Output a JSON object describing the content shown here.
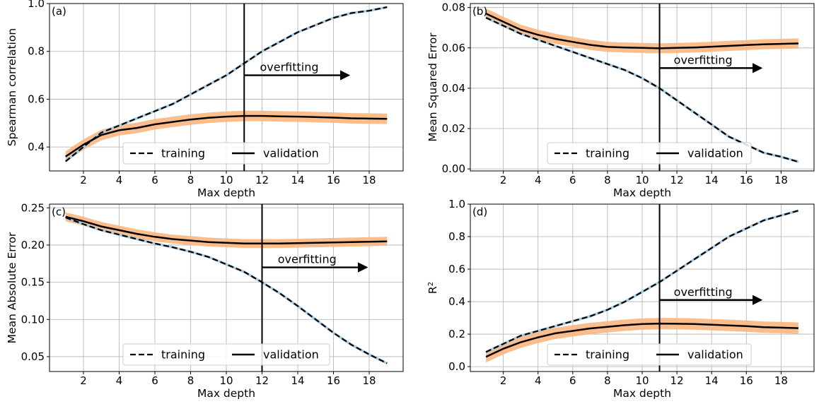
{
  "chart_data": [
    {
      "type": "line",
      "panel_label": "(a)",
      "xlabel": "Max depth",
      "ylabel": "Spearman correlation",
      "xlim": [
        0.1,
        19.9
      ],
      "ylim": [
        0.3,
        1.0
      ],
      "xticks": [
        2,
        4,
        6,
        8,
        10,
        12,
        14,
        16,
        18
      ],
      "yticks": [
        0.4,
        0.6,
        0.8,
        1.0
      ],
      "ytick_labels": [
        "0.4",
        "0.6",
        "0.8",
        "1.0"
      ],
      "grid": true,
      "legend_placement": "lower center",
      "x": [
        1,
        2,
        3,
        4,
        5,
        6,
        7,
        8,
        9,
        10,
        11,
        12,
        13,
        14,
        15,
        16,
        17,
        18,
        19
      ],
      "series": [
        {
          "name": "training",
          "style": "dashed",
          "values": [
            0.34,
            0.4,
            0.46,
            0.49,
            0.52,
            0.55,
            0.58,
            0.62,
            0.66,
            0.7,
            0.75,
            0.8,
            0.84,
            0.88,
            0.91,
            0.94,
            0.96,
            0.97,
            0.985
          ]
        },
        {
          "name": "validation",
          "style": "solid",
          "values": [
            0.36,
            0.41,
            0.45,
            0.47,
            0.48,
            0.495,
            0.505,
            0.515,
            0.522,
            0.527,
            0.53,
            0.53,
            0.528,
            0.527,
            0.525,
            0.523,
            0.52,
            0.519,
            0.518
          ],
          "band": 0.022
        }
      ],
      "vline_x": 11,
      "annotation": {
        "text": "overfitting",
        "x_start": 11,
        "x_end": 17,
        "y": 0.7
      }
    },
    {
      "type": "line",
      "panel_label": "(b)",
      "xlabel": "Max depth",
      "ylabel": "Mean Squared Error",
      "xlim": [
        0.1,
        19.9
      ],
      "ylim": [
        -0.001,
        0.082
      ],
      "xticks": [
        2,
        4,
        6,
        8,
        10,
        12,
        14,
        16,
        18
      ],
      "yticks": [
        0.0,
        0.02,
        0.04,
        0.06,
        0.08
      ],
      "ytick_labels": [
        "0.00",
        "0.02",
        "0.04",
        "0.06",
        "0.08"
      ],
      "grid": true,
      "legend_placement": "lower center",
      "x": [
        1,
        2,
        3,
        4,
        5,
        6,
        7,
        8,
        9,
        10,
        11,
        12,
        13,
        14,
        15,
        16,
        17,
        18,
        19
      ],
      "series": [
        {
          "name": "training",
          "style": "dashed",
          "values": [
            0.075,
            0.071,
            0.067,
            0.064,
            0.061,
            0.058,
            0.055,
            0.052,
            0.049,
            0.045,
            0.04,
            0.034,
            0.028,
            0.022,
            0.016,
            0.012,
            0.008,
            0.006,
            0.0035
          ]
        },
        {
          "name": "validation",
          "style": "solid",
          "values": [
            0.077,
            0.073,
            0.069,
            0.0665,
            0.0645,
            0.063,
            0.0615,
            0.0605,
            0.0602,
            0.06,
            0.0598,
            0.06,
            0.0602,
            0.0606,
            0.061,
            0.0614,
            0.0618,
            0.062,
            0.0622
          ],
          "band": 0.0025
        }
      ],
      "vline_x": 11,
      "annotation": {
        "text": "overfitting",
        "x_start": 11,
        "x_end": 17,
        "y": 0.05
      }
    },
    {
      "type": "line",
      "panel_label": "(c)",
      "xlabel": "Max depth",
      "ylabel": "Mean Absolute Error",
      "xlim": [
        0.1,
        19.9
      ],
      "ylim": [
        0.03,
        0.255
      ],
      "xticks": [
        2,
        4,
        6,
        8,
        10,
        12,
        14,
        16,
        18
      ],
      "yticks": [
        0.05,
        0.1,
        0.15,
        0.2,
        0.25
      ],
      "ytick_labels": [
        "0.05",
        "0.10",
        "0.15",
        "0.20",
        "0.25"
      ],
      "grid": true,
      "legend_placement": "lower center",
      "x": [
        1,
        2,
        3,
        4,
        5,
        6,
        7,
        8,
        9,
        10,
        11,
        12,
        13,
        14,
        15,
        16,
        17,
        18,
        19
      ],
      "series": [
        {
          "name": "training",
          "style": "dashed",
          "values": [
            0.237,
            0.228,
            0.22,
            0.214,
            0.208,
            0.202,
            0.197,
            0.191,
            0.184,
            0.174,
            0.164,
            0.15,
            0.135,
            0.118,
            0.1,
            0.082,
            0.066,
            0.053,
            0.041
          ]
        },
        {
          "name": "validation",
          "style": "solid",
          "values": [
            0.238,
            0.232,
            0.225,
            0.22,
            0.215,
            0.211,
            0.208,
            0.206,
            0.204,
            0.203,
            0.202,
            0.202,
            0.202,
            0.2025,
            0.203,
            0.2035,
            0.204,
            0.2045,
            0.205
          ],
          "band": 0.006
        }
      ],
      "vline_x": 12,
      "annotation": {
        "text": "overfitting",
        "x_start": 12,
        "x_end": 18,
        "y": 0.17
      }
    },
    {
      "type": "line",
      "panel_label": "(d)",
      "xlabel": "Max depth",
      "ylabel": "R",
      "ylabel_superscript": "2",
      "xlim": [
        0.1,
        19.9
      ],
      "ylim": [
        -0.03,
        1.0
      ],
      "xticks": [
        2,
        4,
        6,
        8,
        10,
        12,
        14,
        16,
        18
      ],
      "yticks": [
        0.0,
        0.2,
        0.4,
        0.6,
        0.8,
        1.0
      ],
      "ytick_labels": [
        "0.0",
        "0.2",
        "0.4",
        "0.6",
        "0.8",
        "1.0"
      ],
      "grid": true,
      "legend_placement": "lower center",
      "x": [
        1,
        2,
        3,
        4,
        5,
        6,
        7,
        8,
        9,
        10,
        11,
        12,
        13,
        14,
        15,
        16,
        17,
        18,
        19
      ],
      "series": [
        {
          "name": "training",
          "style": "dashed",
          "values": [
            0.09,
            0.14,
            0.19,
            0.22,
            0.25,
            0.28,
            0.31,
            0.35,
            0.4,
            0.46,
            0.52,
            0.59,
            0.66,
            0.73,
            0.8,
            0.85,
            0.9,
            0.93,
            0.96
          ]
        },
        {
          "name": "validation",
          "style": "solid",
          "values": [
            0.06,
            0.11,
            0.15,
            0.18,
            0.205,
            0.22,
            0.235,
            0.245,
            0.255,
            0.262,
            0.265,
            0.264,
            0.262,
            0.258,
            0.254,
            0.249,
            0.243,
            0.24,
            0.237
          ],
          "band": 0.035
        }
      ],
      "vline_x": 11,
      "annotation": {
        "text": "overfitting",
        "x_start": 11,
        "x_end": 17,
        "y": 0.41
      }
    }
  ]
}
